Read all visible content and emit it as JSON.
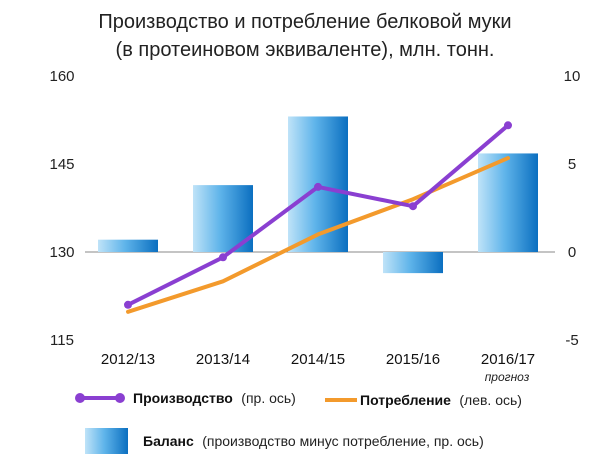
{
  "chart_data": {
    "type": "bar+line",
    "title": "Производство и потребление белковой муки",
    "subtitle": "(в протеиновом эквиваленте), млн. тонн.",
    "categories": [
      "2012/13",
      "2013/14",
      "2014/15",
      "2015/16",
      "2016/17"
    ],
    "category_note": "прогноз",
    "left_axis": {
      "min": 115,
      "max": 160,
      "ticks": [
        "115",
        "130",
        "145",
        "160"
      ]
    },
    "right_axis": {
      "min": -5,
      "max": 10,
      "ticks": [
        "-5",
        "0",
        "5",
        "10"
      ]
    },
    "bar_series": {
      "name": "Баланс",
      "desc": "(производство минус потребление, пр. ось)",
      "axis": "right",
      "color": "#1e88d0",
      "values": [
        0.7,
        3.8,
        7.7,
        -1.2,
        5.6
      ]
    },
    "line_series": [
      {
        "name": "Производство",
        "desc": "(пр. ось)",
        "axis": "right",
        "color": "#8a3fd1",
        "values": [
          -3.0,
          -0.3,
          3.7,
          2.6,
          7.2
        ]
      },
      {
        "name": "Потребление",
        "desc": "(лев. ось)",
        "axis": "left",
        "color": "#f39a2c",
        "values": [
          119.8,
          125.0,
          133.0,
          139.0,
          146.0
        ]
      }
    ],
    "grid": false
  }
}
